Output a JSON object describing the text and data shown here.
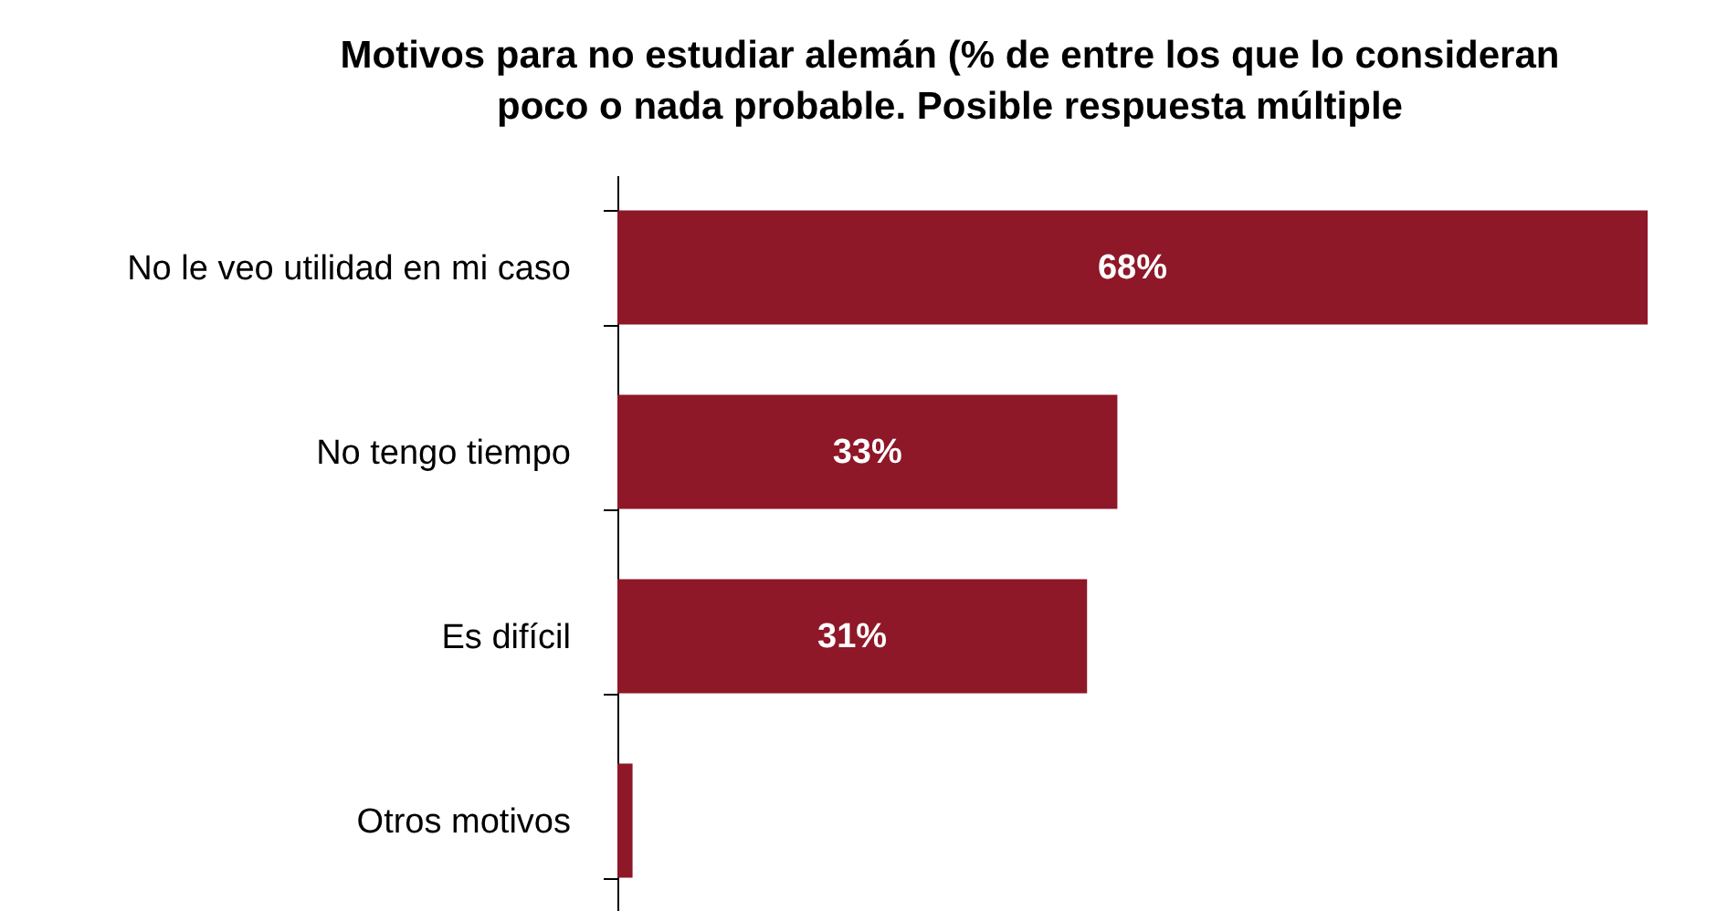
{
  "chart_data": {
    "type": "bar",
    "orientation": "horizontal",
    "title": [
      "Motivos para no estudiar alemán (% de entre los que lo consideran",
      "poco o nada probable. Posible respuesta múltiple"
    ],
    "categories": [
      "No le veo utilidad en mi caso",
      "No tengo tiempo",
      "Es difícil",
      "Otros motivos"
    ],
    "values": [
      68,
      33,
      31,
      1
    ],
    "value_labels": [
      "68%",
      "33%",
      "31%",
      null
    ],
    "color": "#8e1728"
  }
}
